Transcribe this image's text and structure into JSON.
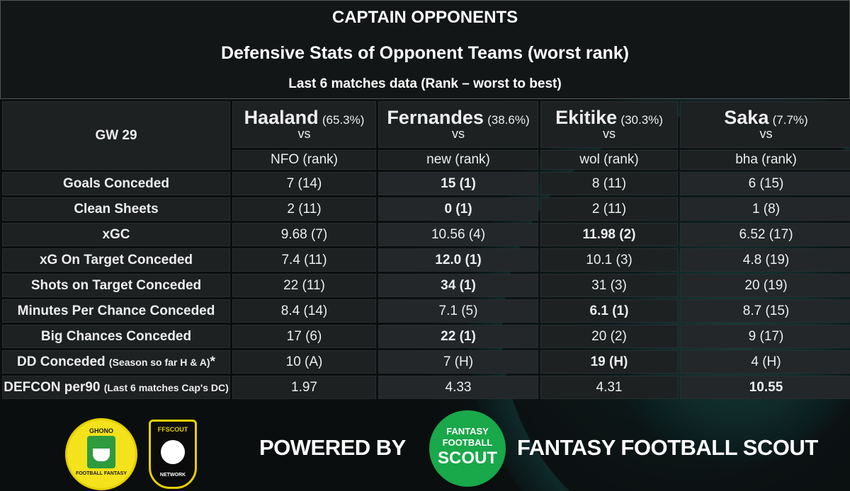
{
  "header": {
    "title": "CAPTAIN OPPONENTS",
    "subtitle": "Defensive Stats of Opponent Teams (worst rank)",
    "note": "Last 6 matches data  (Rank –  worst to best)"
  },
  "table": {
    "gw_label": "GW 29",
    "vs_label": "vs",
    "players": [
      {
        "name": "Haaland",
        "pct": "(65.3%)",
        "opponent": "NFO  (rank)"
      },
      {
        "name": "Fernandes",
        "pct": "(38.6%)",
        "opponent": "new  (rank)"
      },
      {
        "name": "Ekitike",
        "pct": "(30.3%)",
        "opponent": "wol  (rank)"
      },
      {
        "name": "Saka",
        "pct": "(7.7%)",
        "opponent": "bha  (rank)"
      }
    ],
    "rows": [
      {
        "label": "Goals Conceded",
        "values": [
          "7 (14)",
          "15 (1)",
          "8 (11)",
          "6 (15)"
        ],
        "highlight": 1
      },
      {
        "label": "Clean Sheets",
        "values": [
          "2 (11)",
          "0 (1)",
          "2 (11)",
          "1 (8)"
        ],
        "highlight": 1
      },
      {
        "label": "xGC",
        "values": [
          "9.68 (7)",
          "10.56 (4)",
          "11.98 (2)",
          "6.52 (17)"
        ],
        "highlight": 2
      },
      {
        "label": "xG On Target Conceded",
        "values": [
          "7.4 (11)",
          "12.0 (1)",
          "10.1 (3)",
          "4.8 (19)"
        ],
        "highlight": 1
      },
      {
        "label": "Shots on Target Conceded",
        "values": [
          "22 (11)",
          "34 (1)",
          "31 (3)",
          "20 (19)"
        ],
        "highlight": 1
      },
      {
        "label": "Minutes Per Chance Conceded",
        "values": [
          "8.4 (14)",
          "7.1 (5)",
          "6.1 (1)",
          "8.7 (15)"
        ],
        "highlight": 2
      },
      {
        "label": "Big Chances Conceded",
        "values": [
          "17 (6)",
          "22 (1)",
          "20 (2)",
          "9 (17)"
        ],
        "highlight": 1
      },
      {
        "label": "DD Conceded ",
        "label_small": "(Season so far H & A)",
        "label_suffix": "*",
        "values": [
          "10 (A)",
          "7 (H)",
          "19 (H)",
          "4 (H)"
        ],
        "highlight": 2
      },
      {
        "label": "DEFCON per90 ",
        "label_small": "(Last 6 matches Cap's DC)",
        "label_suffix": "",
        "values": [
          "1.97",
          "4.33",
          "4.31",
          "10.55"
        ],
        "highlight": 3
      }
    ]
  },
  "footer": {
    "ghono_logo_top": "GHONO",
    "ghono_logo_bottom": "FOOTBALL FANTASY",
    "ffscout_logo_top": "FFSCOUT",
    "ffscout_logo_bottom": "NETWORK",
    "powered_by": "POWERED BY",
    "badge_line1": "FANTASY",
    "badge_line2": "FOOTBALL",
    "badge_line3": "SCOUT",
    "brand": "FANTASY FOOTBALL SCOUT"
  },
  "colors": {
    "highlight_green": "#4fd22a",
    "header_olive": "#b8c57c",
    "background": "#0b0e0f"
  }
}
